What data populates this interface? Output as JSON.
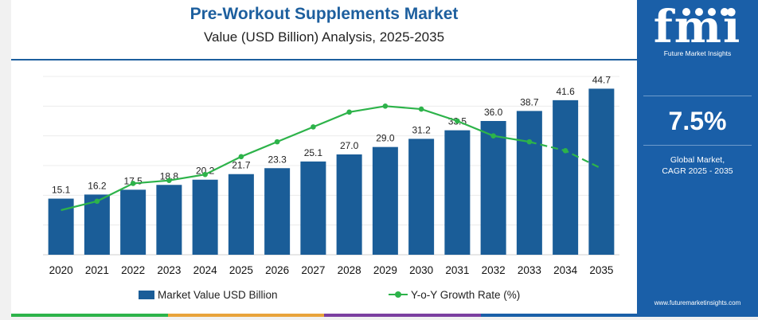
{
  "title": "Pre-Workout Supplements Market",
  "subtitle": "Value (USD Billion) Analysis, 2025-2035",
  "side_panel": {
    "logo": "fmi",
    "logo_subtitle": "Future Market Insights",
    "cagr": "7.5%",
    "cagr_label_line1": "Global Market,",
    "cagr_label_line2": "CAGR 2025 - 2035",
    "url": "www.futuremarketinsights.com"
  },
  "colors": {
    "bar": "#1a5d98",
    "growth_line": "#2db34a",
    "accent_blue": "#1d5f9e",
    "panel": "#1a5fa8"
  },
  "chart_data": {
    "type": "bar",
    "title": "Pre-Workout Supplements Market",
    "subtitle": "Value (USD Billion) Analysis, 2025-2035",
    "categories": [
      "2020",
      "2021",
      "2022",
      "2023",
      "2024",
      "2025",
      "2026",
      "2027",
      "2028",
      "2029",
      "2030",
      "2031",
      "2032",
      "2033",
      "2034",
      "2035"
    ],
    "series": [
      {
        "name": "Market Value USD Billion",
        "type": "bar",
        "values": [
          15.1,
          16.2,
          17.5,
          18.8,
          20.2,
          21.7,
          23.3,
          25.1,
          27.0,
          29.0,
          31.2,
          33.5,
          36.0,
          38.7,
          41.6,
          44.7
        ],
        "labels": [
          "15.1",
          "16.2",
          "17.5",
          "18.8",
          "20.2",
          "21.7",
          "23.3",
          "25.1",
          "27.0",
          "29.0",
          "31.2",
          "33.5",
          "36.0",
          "38.7",
          "41.6",
          "44.7"
        ]
      },
      {
        "name": "Y-o-Y Growth Rate (%)",
        "type": "line",
        "values": [
          6.0,
          6.3,
          6.9,
          7.0,
          7.2,
          7.8,
          8.3,
          8.8,
          9.3,
          9.5,
          9.4,
          9.0,
          8.5,
          8.3,
          8.0,
          7.4
        ],
        "dashed_from_index": 13
      }
    ],
    "ylim": [
      0,
      48
    ],
    "growth_ylim": [
      4.5,
      10.5
    ],
    "grid": true,
    "legend_position": "bottom"
  }
}
